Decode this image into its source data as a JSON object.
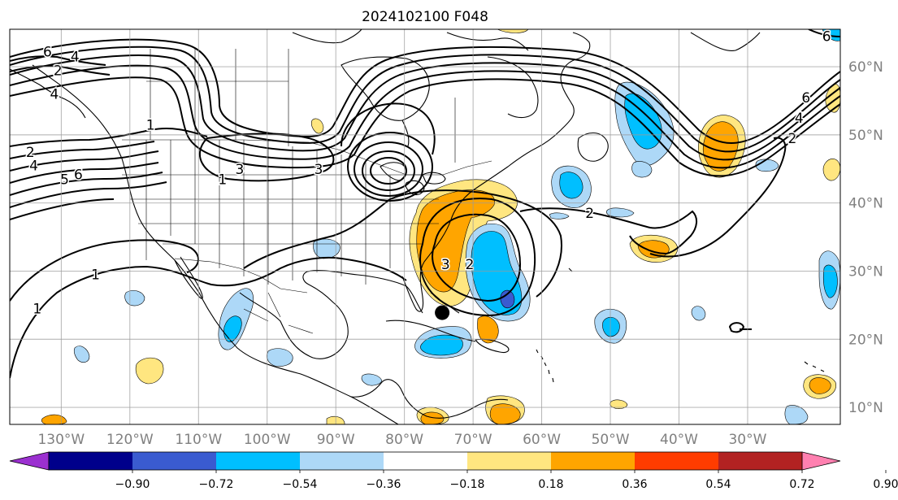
{
  "title": "2024102100 F048",
  "map": {
    "lon_range": [
      -137.5,
      -16.5
    ],
    "lat_range": [
      7.5,
      65.5
    ],
    "lon_ticks": [
      -130,
      -120,
      -110,
      -100,
      -90,
      -80,
      -70,
      -60,
      -50,
      -40,
      -30
    ],
    "lon_labels": [
      "130°W",
      "120°W",
      "110°W",
      "100°W",
      "90°W",
      "80°W",
      "70°W",
      "60°W",
      "50°W",
      "40°W",
      "30°W"
    ],
    "lat_ticks": [
      10,
      20,
      30,
      40,
      50,
      60
    ],
    "lat_labels": [
      "10°N",
      "20°N",
      "30°N",
      "40°N",
      "50°N",
      "60°N"
    ],
    "grid": true,
    "storm_marker": {
      "lon": -74.5,
      "lat": 23.9
    }
  },
  "colorbar": {
    "levels": [
      "−0.90",
      "−0.72",
      "−0.54",
      "−0.36",
      "−0.18",
      "0.18",
      "0.36",
      "0.54",
      "0.72",
      "0.90"
    ],
    "colors": [
      "#9b30d0",
      "#00008b",
      "#3a5bd0",
      "#00bfff",
      "#add8f7",
      "#ffffff",
      "#ffe680",
      "#ffa500",
      "#ff3c00",
      "#b22222",
      "#ff80b0"
    ],
    "extend": "both"
  },
  "contour_labels": [
    {
      "text": "6",
      "lon": -132,
      "lat": 62.2
    },
    {
      "text": "4",
      "lon": -128,
      "lat": 61.5
    },
    {
      "text": "2",
      "lon": -130.5,
      "lat": 59.5
    },
    {
      "text": "4",
      "lon": -131,
      "lat": 56
    },
    {
      "text": "1",
      "lon": -117,
      "lat": 51.5
    },
    {
      "text": "2",
      "lon": -134.5,
      "lat": 47.5
    },
    {
      "text": "4",
      "lon": -134,
      "lat": 45.5
    },
    {
      "text": "5",
      "lon": -129.5,
      "lat": 43.5
    },
    {
      "text": "6",
      "lon": -127.5,
      "lat": 44.2
    },
    {
      "text": "1",
      "lon": -106.5,
      "lat": 43.5
    },
    {
      "text": "3",
      "lon": -104,
      "lat": 45
    },
    {
      "text": "1",
      "lon": -125,
      "lat": 29.5
    },
    {
      "text": "1",
      "lon": -133.5,
      "lat": 24.5
    },
    {
      "text": "3",
      "lon": -92.5,
      "lat": 45
    },
    {
      "text": "3",
      "lon": -74,
      "lat": 31
    },
    {
      "text": "2",
      "lon": -70.5,
      "lat": 31
    },
    {
      "text": "2",
      "lon": -53,
      "lat": 38.5
    },
    {
      "text": "2",
      "lon": -23.5,
      "lat": 49.5
    },
    {
      "text": "4",
      "lon": -22.5,
      "lat": 52.5
    },
    {
      "text": "6",
      "lon": -21.5,
      "lat": 55.5
    },
    {
      "text": "6",
      "lon": -18.5,
      "lat": 64.5
    }
  ]
}
